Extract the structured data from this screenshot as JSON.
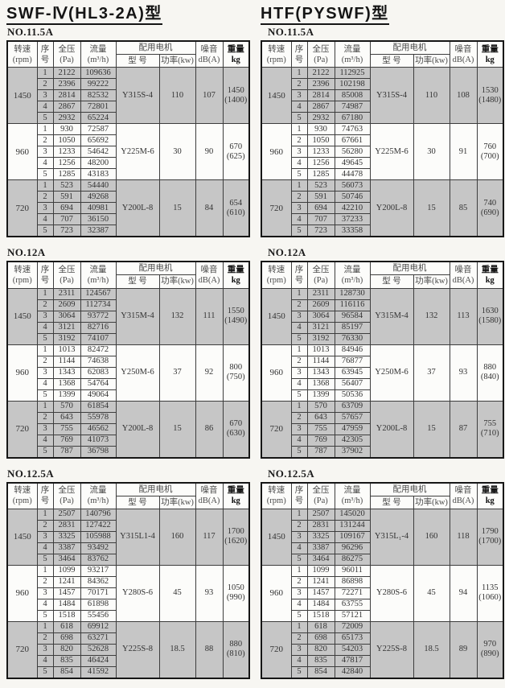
{
  "colors": {
    "shaded_row": "#c6c6c6",
    "border": "#3d3d3d",
    "page_bg": "#f7f6f2"
  },
  "table_header": {
    "speed": [
      "转速",
      "(rpm)"
    ],
    "seq": [
      "序",
      "号"
    ],
    "pressure": [
      "全压",
      "(Pa)"
    ],
    "flow": [
      "流量",
      "(m³/h)"
    ],
    "motor_group": "配用电机",
    "motor_model": "型  号",
    "motor_power": "功率(kw)",
    "noise": [
      "噪音",
      "dB(A)"
    ],
    "weight": [
      "重量",
      "kg"
    ]
  },
  "columns": [
    {
      "title": "SWF-Ⅳ(HL3-2A)型",
      "tables": [
        {
          "label": "NO.11.5A",
          "groups": [
            {
              "rpm": "1450",
              "shaded": true,
              "rows": [
                [
                  "1",
                  "2122",
                  "109636"
                ],
                [
                  "2",
                  "2396",
                  "99222"
                ],
                [
                  "3",
                  "2814",
                  "82532"
                ],
                [
                  "4",
                  "2867",
                  "72801"
                ],
                [
                  "5",
                  "2932",
                  "65224"
                ]
              ],
              "model": "Y315S-4",
              "power": "110",
              "noise": "107",
              "weight": [
                "1450",
                "(1400)"
              ]
            },
            {
              "rpm": "960",
              "shaded": false,
              "rows": [
                [
                  "1",
                  "930",
                  "72587"
                ],
                [
                  "2",
                  "1050",
                  "65692"
                ],
                [
                  "3",
                  "1233",
                  "54642"
                ],
                [
                  "4",
                  "1256",
                  "48200"
                ],
                [
                  "5",
                  "1285",
                  "43183"
                ]
              ],
              "model": "Y225M-6",
              "power": "30",
              "noise": "90",
              "weight": [
                "670",
                "(625)"
              ]
            },
            {
              "rpm": "720",
              "shaded": true,
              "rows": [
                [
                  "1",
                  "523",
                  "54440"
                ],
                [
                  "2",
                  "591",
                  "49268"
                ],
                [
                  "3",
                  "694",
                  "40981"
                ],
                [
                  "4",
                  "707",
                  "36150"
                ],
                [
                  "5",
                  "723",
                  "32387"
                ]
              ],
              "model": "Y200L-8",
              "power": "15",
              "noise": "84",
              "weight": [
                "654",
                "(610)"
              ]
            }
          ]
        },
        {
          "label": "NO.12A",
          "groups": [
            {
              "rpm": "1450",
              "shaded": true,
              "rows": [
                [
                  "1",
                  "2311",
                  "124567"
                ],
                [
                  "2",
                  "2609",
                  "112734"
                ],
                [
                  "3",
                  "3064",
                  "93772"
                ],
                [
                  "4",
                  "3121",
                  "82716"
                ],
                [
                  "5",
                  "3192",
                  "74107"
                ]
              ],
              "model": "Y315M-4",
              "power": "132",
              "noise": "111",
              "weight": [
                "1550",
                "(1490)"
              ]
            },
            {
              "rpm": "960",
              "shaded": false,
              "rows": [
                [
                  "1",
                  "1013",
                  "82472"
                ],
                [
                  "2",
                  "1144",
                  "74638"
                ],
                [
                  "3",
                  "1343",
                  "62083"
                ],
                [
                  "4",
                  "1368",
                  "54764"
                ],
                [
                  "5",
                  "1399",
                  "49064"
                ]
              ],
              "model": "Y250M-6",
              "power": "37",
              "noise": "92",
              "weight": [
                "800",
                "(750)"
              ]
            },
            {
              "rpm": "720",
              "shaded": true,
              "rows": [
                [
                  "1",
                  "570",
                  "61854"
                ],
                [
                  "2",
                  "643",
                  "55978"
                ],
                [
                  "3",
                  "755",
                  "46562"
                ],
                [
                  "4",
                  "769",
                  "41073"
                ],
                [
                  "5",
                  "787",
                  "36798"
                ]
              ],
              "model": "Y200L-8",
              "power": "15",
              "noise": "86",
              "weight": [
                "670",
                "(630)"
              ]
            }
          ]
        },
        {
          "label": "NO.12.5A",
          "groups": [
            {
              "rpm": "1450",
              "shaded": true,
              "rows": [
                [
                  "1",
                  "2507",
                  "140796"
                ],
                [
                  "2",
                  "2831",
                  "127422"
                ],
                [
                  "3",
                  "3325",
                  "105988"
                ],
                [
                  "4",
                  "3387",
                  "93492"
                ],
                [
                  "5",
                  "3464",
                  "83762"
                ]
              ],
              "model": "Y315L1-4",
              "power": "160",
              "noise": "117",
              "weight": [
                "1700",
                "(1620)"
              ]
            },
            {
              "rpm": "960",
              "shaded": false,
              "rows": [
                [
                  "1",
                  "1099",
                  "93217"
                ],
                [
                  "2",
                  "1241",
                  "84362"
                ],
                [
                  "3",
                  "1457",
                  "70171"
                ],
                [
                  "4",
                  "1484",
                  "61898"
                ],
                [
                  "5",
                  "1518",
                  "55456"
                ]
              ],
              "model": "Y280S-6",
              "power": "45",
              "noise": "93",
              "weight": [
                "1050",
                "(990)"
              ]
            },
            {
              "rpm": "720",
              "shaded": true,
              "rows": [
                [
                  "1",
                  "618",
                  "69912"
                ],
                [
                  "2",
                  "698",
                  "63271"
                ],
                [
                  "3",
                  "820",
                  "52628"
                ],
                [
                  "4",
                  "835",
                  "46424"
                ],
                [
                  "5",
                  "854",
                  "41592"
                ]
              ],
              "model": "Y225S-8",
              "power": "18.5",
              "noise": "88",
              "weight": [
                "880",
                "(810)"
              ]
            }
          ]
        }
      ]
    },
    {
      "title": "HTF(PYSWF)型",
      "tables": [
        {
          "label": "NO.11.5A",
          "groups": [
            {
              "rpm": "1450",
              "shaded": true,
              "rows": [
                [
                  "1",
                  "2122",
                  "112925"
                ],
                [
                  "2",
                  "2396",
                  "102198"
                ],
                [
                  "3",
                  "2814",
                  "85008"
                ],
                [
                  "4",
                  "2867",
                  "74987"
                ],
                [
                  "5",
                  "2932",
                  "67180"
                ]
              ],
              "model": "Y315S-4",
              "power": "110",
              "noise": "108",
              "weight": [
                "1530",
                "(1480)"
              ]
            },
            {
              "rpm": "960",
              "shaded": false,
              "rows": [
                [
                  "1",
                  "930",
                  "74763"
                ],
                [
                  "2",
                  "1050",
                  "67661"
                ],
                [
                  "3",
                  "1233",
                  "56280"
                ],
                [
                  "4",
                  "1256",
                  "49645"
                ],
                [
                  "5",
                  "1285",
                  "44478"
                ]
              ],
              "model": "Y225M-6",
              "power": "30",
              "noise": "91",
              "weight": [
                "760",
                "(700)"
              ]
            },
            {
              "rpm": "720",
              "shaded": true,
              "rows": [
                [
                  "1",
                  "523",
                  "56073"
                ],
                [
                  "2",
                  "591",
                  "50746"
                ],
                [
                  "3",
                  "694",
                  "42210"
                ],
                [
                  "4",
                  "707",
                  "37233"
                ],
                [
                  "5",
                  "723",
                  "33358"
                ]
              ],
              "model": "Y200L-8",
              "power": "15",
              "noise": "85",
              "weight": [
                "740",
                "(690)"
              ]
            }
          ]
        },
        {
          "label": "NO.12A",
          "groups": [
            {
              "rpm": "1450",
              "shaded": true,
              "rows": [
                [
                  "1",
                  "2311",
                  "128730"
                ],
                [
                  "2",
                  "2609",
                  "116116"
                ],
                [
                  "3",
                  "3064",
                  "96584"
                ],
                [
                  "4",
                  "3121",
                  "85197"
                ],
                [
                  "5",
                  "3192",
                  "76330"
                ]
              ],
              "model": "Y315M-4",
              "power": "132",
              "noise": "113",
              "weight": [
                "1630",
                "(1580)"
              ]
            },
            {
              "rpm": "960",
              "shaded": false,
              "rows": [
                [
                  "1",
                  "1013",
                  "84946"
                ],
                [
                  "2",
                  "1144",
                  "76877"
                ],
                [
                  "3",
                  "1343",
                  "63945"
                ],
                [
                  "4",
                  "1368",
                  "56407"
                ],
                [
                  "5",
                  "1399",
                  "50536"
                ]
              ],
              "model": "Y250M-6",
              "power": "37",
              "noise": "93",
              "weight": [
                "880",
                "(840)"
              ]
            },
            {
              "rpm": "720",
              "shaded": true,
              "rows": [
                [
                  "1",
                  "570",
                  "63709"
                ],
                [
                  "2",
                  "643",
                  "57657"
                ],
                [
                  "3",
                  "755",
                  "47959"
                ],
                [
                  "4",
                  "769",
                  "42305"
                ],
                [
                  "5",
                  "787",
                  "37902"
                ]
              ],
              "model": "Y200L-8",
              "power": "15",
              "noise": "87",
              "weight": [
                "755",
                "(710)"
              ]
            }
          ]
        },
        {
          "label": "NO.12.5A",
          "groups": [
            {
              "rpm": "1450",
              "shaded": true,
              "rows": [
                [
                  "1",
                  "2507",
                  "145020"
                ],
                [
                  "2",
                  "2831",
                  "131244"
                ],
                [
                  "3",
                  "3325",
                  "109167"
                ],
                [
                  "4",
                  "3387",
                  "96296"
                ],
                [
                  "5",
                  "3464",
                  "86275"
                ]
              ],
              "model": "Y315L₁-4",
              "power": "160",
              "noise": "118",
              "weight": [
                "1790",
                "(1700)"
              ]
            },
            {
              "rpm": "960",
              "shaded": false,
              "rows": [
                [
                  "1",
                  "1099",
                  "96011"
                ],
                [
                  "2",
                  "1241",
                  "86898"
                ],
                [
                  "3",
                  "1457",
                  "72271"
                ],
                [
                  "4",
                  "1484",
                  "63755"
                ],
                [
                  "5",
                  "1518",
                  "57121"
                ]
              ],
              "model": "Y280S-6",
              "power": "45",
              "noise": "94",
              "weight": [
                "1135",
                "(1060)"
              ]
            },
            {
              "rpm": "720",
              "shaded": true,
              "rows": [
                [
                  "1",
                  "618",
                  "72009"
                ],
                [
                  "2",
                  "698",
                  "65173"
                ],
                [
                  "3",
                  "820",
                  "54203"
                ],
                [
                  "4",
                  "835",
                  "47817"
                ],
                [
                  "5",
                  "854",
                  "42840"
                ]
              ],
              "model": "Y225S-8",
              "power": "18.5",
              "noise": "89",
              "weight": [
                "970",
                "(890)"
              ]
            }
          ]
        }
      ]
    }
  ]
}
